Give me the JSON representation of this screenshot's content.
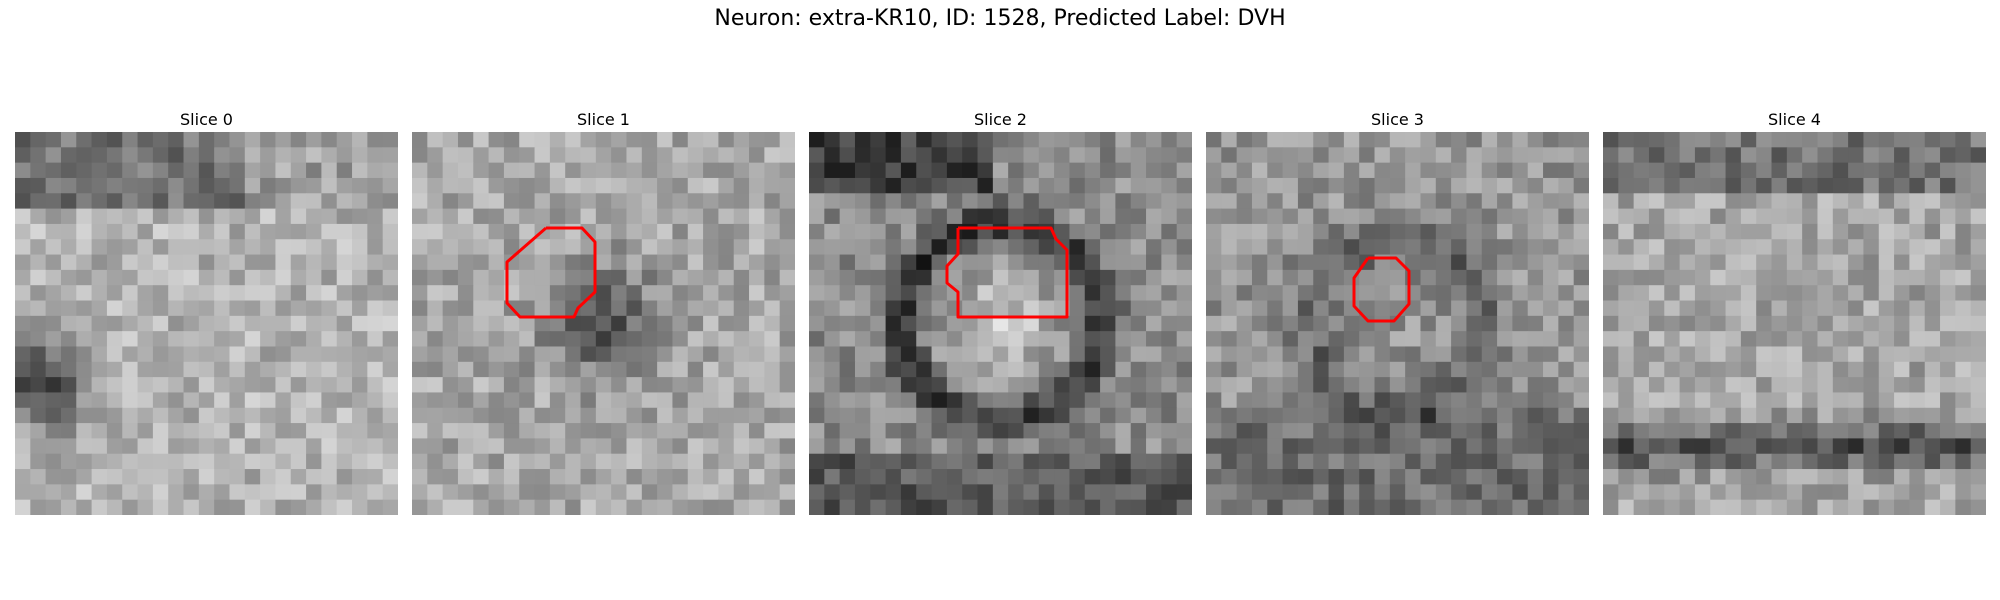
{
  "figure": {
    "title": "Neuron: extra-KR10, ID: 1528, Predicted Label: DVH"
  },
  "panels": [
    {
      "title": "Slice 0",
      "roi": false,
      "variant": "blob-left"
    },
    {
      "title": "Slice 1",
      "roi": true,
      "variant": "ring-dark"
    },
    {
      "title": "Slice 2",
      "roi": true,
      "variant": "ring-bright"
    },
    {
      "title": "Slice 3",
      "roi": true,
      "variant": "soft-center"
    },
    {
      "title": "Slice 4",
      "roi": false,
      "variant": "band-bottom"
    }
  ],
  "colors": {
    "roi_outline": "#ff0000",
    "background": "#ffffff"
  }
}
